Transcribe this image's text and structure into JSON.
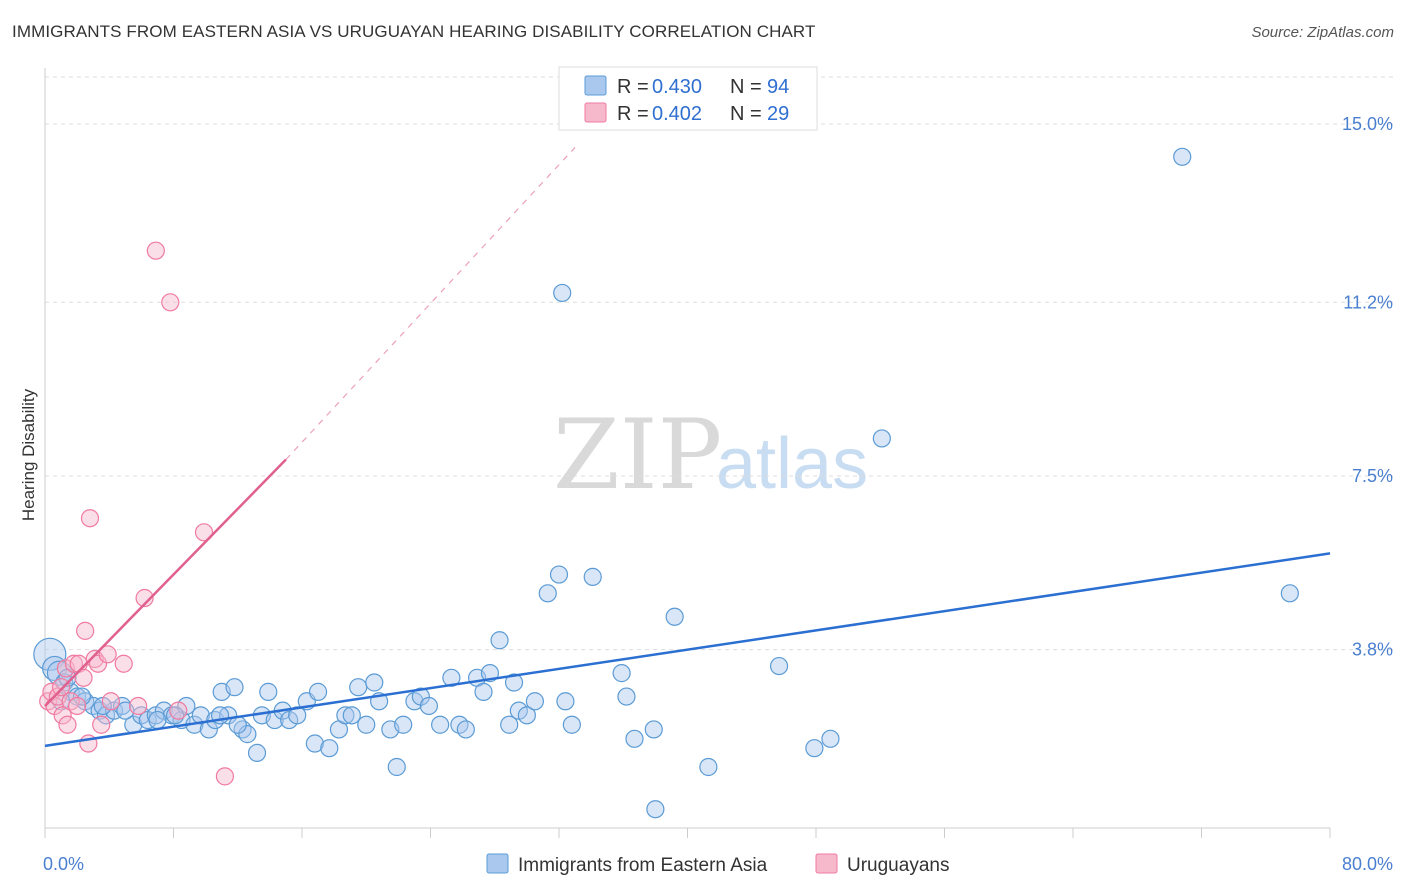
{
  "header": {
    "title": "IMMIGRANTS FROM EASTERN ASIA VS URUGUAYAN HEARING DISABILITY CORRELATION CHART",
    "source": "Source: ZipAtlas.com"
  },
  "watermark": {
    "zip": "ZIP",
    "atlas": "atlas"
  },
  "colors": {
    "blue": "#5b9bd5",
    "blue_fill": "#aac8ee",
    "blue_line": "#2a6fd1",
    "pink": "#f07aa0",
    "pink_fill": "#f6b9cc",
    "pink_line": "#e0608f",
    "grid": "#dddddd",
    "tick_text": "#4a7fd0"
  },
  "legend": {
    "series": [
      {
        "r_label": "R = ",
        "r_value": "0.430",
        "n_label": "N = ",
        "n_value": "94"
      },
      {
        "r_label": "R = ",
        "r_value": "0.402",
        "n_label": "N = ",
        "n_value": "29"
      }
    ]
  },
  "bottom_legend": {
    "items": [
      "Immigrants from Eastern Asia",
      "Uruguayans"
    ]
  },
  "chart_data": {
    "type": "scatter",
    "title": "IMMIGRANTS FROM EASTERN ASIA VS URUGUAYAN HEARING DISABILITY CORRELATION CHART",
    "xlabel": "",
    "ylabel": "Hearing Disability",
    "xlim": [
      0,
      80
    ],
    "ylim": [
      0,
      16
    ],
    "x_tick_labels": [
      "0.0%",
      "80.0%"
    ],
    "y_ticks": [
      3.8,
      7.5,
      11.2,
      15.0
    ],
    "y_tick_labels": [
      "3.8%",
      "7.5%",
      "11.2%",
      "15.0%"
    ],
    "grid": true,
    "series": [
      {
        "name": "Immigrants from Eastern Asia",
        "R": 0.43,
        "N": 94,
        "trend": {
          "x": [
            0,
            80
          ],
          "y": [
            1.75,
            5.85
          ]
        },
        "points": [
          [
            0.3,
            3.7,
            3
          ],
          [
            0.6,
            3.4,
            2
          ],
          [
            0.9,
            3.3,
            2
          ],
          [
            1.2,
            3.1,
            1
          ],
          [
            1.6,
            2.9,
            1
          ],
          [
            2.0,
            2.8,
            1
          ],
          [
            2.5,
            2.7,
            1
          ],
          [
            3.0,
            2.6,
            1
          ],
          [
            3.4,
            2.5,
            1
          ],
          [
            3.8,
            2.4,
            1
          ],
          [
            4.3,
            2.5,
            1
          ],
          [
            4.8,
            2.6,
            1
          ],
          [
            5.5,
            2.2,
            1
          ],
          [
            6.0,
            2.4,
            1
          ],
          [
            6.4,
            2.3,
            1
          ],
          [
            6.9,
            2.4,
            1
          ],
          [
            7.4,
            2.5,
            1
          ],
          [
            7.9,
            2.4,
            1
          ],
          [
            8.5,
            2.3,
            1
          ],
          [
            8.8,
            2.6,
            1
          ],
          [
            9.3,
            2.2,
            1
          ],
          [
            9.7,
            2.4,
            1
          ],
          [
            10.2,
            2.1,
            1
          ],
          [
            10.6,
            2.3,
            1
          ],
          [
            11.0,
            2.9,
            1
          ],
          [
            11.4,
            2.4,
            1
          ],
          [
            11.8,
            3.0,
            1
          ],
          [
            12.3,
            2.1,
            1
          ],
          [
            12.6,
            2.0,
            1
          ],
          [
            13.2,
            1.6,
            1
          ],
          [
            13.5,
            2.4,
            1
          ],
          [
            13.9,
            2.9,
            1
          ],
          [
            14.3,
            2.3,
            1
          ],
          [
            14.8,
            2.5,
            1
          ],
          [
            15.2,
            2.3,
            1
          ],
          [
            15.7,
            2.4,
            1
          ],
          [
            16.3,
            2.7,
            1
          ],
          [
            17.0,
            2.9,
            1
          ],
          [
            16.8,
            1.8,
            1
          ],
          [
            17.7,
            1.7,
            1
          ],
          [
            18.3,
            2.1,
            1
          ],
          [
            18.7,
            2.4,
            1
          ],
          [
            19.1,
            2.4,
            1
          ],
          [
            19.5,
            3.0,
            1
          ],
          [
            20.0,
            2.2,
            1
          ],
          [
            20.5,
            3.1,
            1
          ],
          [
            20.8,
            2.7,
            1
          ],
          [
            21.5,
            2.1,
            1
          ],
          [
            21.9,
            1.3,
            1
          ],
          [
            22.3,
            2.2,
            1
          ],
          [
            23.0,
            2.7,
            1
          ],
          [
            23.4,
            2.8,
            1
          ],
          [
            23.9,
            2.6,
            1
          ],
          [
            24.6,
            2.2,
            1
          ],
          [
            25.3,
            3.2,
            1
          ],
          [
            25.8,
            2.2,
            1
          ],
          [
            26.2,
            2.1,
            1
          ],
          [
            26.9,
            3.2,
            1
          ],
          [
            27.3,
            2.9,
            1
          ],
          [
            27.7,
            3.3,
            1
          ],
          [
            28.3,
            4.0,
            1
          ],
          [
            28.9,
            2.2,
            1
          ],
          [
            29.2,
            3.1,
            1
          ],
          [
            29.5,
            2.5,
            1
          ],
          [
            30.0,
            2.4,
            1
          ],
          [
            30.5,
            2.7,
            1
          ],
          [
            31.3,
            5.0,
            1
          ],
          [
            32.0,
            5.4,
            1
          ],
          [
            32.4,
            2.7,
            1
          ],
          [
            32.8,
            2.2,
            1
          ],
          [
            32.2,
            11.4,
            1
          ],
          [
            34.1,
            5.35,
            1
          ],
          [
            35.9,
            3.3,
            1
          ],
          [
            36.2,
            2.8,
            1
          ],
          [
            36.7,
            1.9,
            1
          ],
          [
            37.9,
            2.1,
            1
          ],
          [
            38.0,
            0.4,
            1
          ],
          [
            39.2,
            4.5,
            1
          ],
          [
            41.3,
            1.3,
            1
          ],
          [
            45.7,
            3.45,
            1
          ],
          [
            47.9,
            1.7,
            1
          ],
          [
            48.9,
            1.9,
            1
          ],
          [
            52.1,
            8.3,
            1
          ],
          [
            70.8,
            14.3,
            1
          ],
          [
            77.5,
            5.0,
            1
          ],
          [
            1.0,
            2.7,
            1
          ],
          [
            1.4,
            3.2,
            1
          ],
          [
            2.3,
            2.8,
            1
          ],
          [
            3.6,
            2.6,
            1
          ],
          [
            5.0,
            2.5,
            1
          ],
          [
            7.0,
            2.3,
            1
          ],
          [
            8.1,
            2.4,
            1
          ],
          [
            10.9,
            2.4,
            1
          ],
          [
            12.0,
            2.2,
            1
          ]
        ]
      },
      {
        "name": "Uruguayans",
        "R": 0.402,
        "N": 29,
        "trend": {
          "x": [
            0,
            15
          ],
          "y": [
            2.6,
            7.85
          ]
        },
        "trend_extension": {
          "x": [
            15,
            33
          ],
          "y": [
            7.85,
            14.5
          ]
        },
        "points": [
          [
            0.2,
            2.7,
            1
          ],
          [
            0.4,
            2.9,
            1
          ],
          [
            0.6,
            2.6,
            1
          ],
          [
            0.8,
            2.8,
            1
          ],
          [
            1.0,
            3.0,
            1
          ],
          [
            1.1,
            2.4,
            1
          ],
          [
            1.3,
            3.4,
            1
          ],
          [
            1.4,
            2.2,
            1
          ],
          [
            1.6,
            2.7,
            1
          ],
          [
            1.8,
            3.5,
            1
          ],
          [
            2.0,
            2.6,
            1
          ],
          [
            2.1,
            3.5,
            1
          ],
          [
            2.4,
            3.2,
            1
          ],
          [
            2.5,
            4.2,
            1
          ],
          [
            2.7,
            1.8,
            1
          ],
          [
            2.8,
            6.6,
            1
          ],
          [
            3.1,
            3.6,
            1
          ],
          [
            3.3,
            3.5,
            1
          ],
          [
            3.5,
            2.2,
            1
          ],
          [
            3.9,
            3.7,
            1
          ],
          [
            4.1,
            2.7,
            1
          ],
          [
            4.9,
            3.5,
            1
          ],
          [
            5.8,
            2.6,
            1
          ],
          [
            6.2,
            4.9,
            1
          ],
          [
            6.9,
            12.3,
            1
          ],
          [
            7.8,
            11.2,
            1
          ],
          [
            9.9,
            6.3,
            1
          ],
          [
            11.2,
            1.1,
            1
          ],
          [
            8.3,
            2.5,
            1
          ]
        ]
      }
    ]
  }
}
